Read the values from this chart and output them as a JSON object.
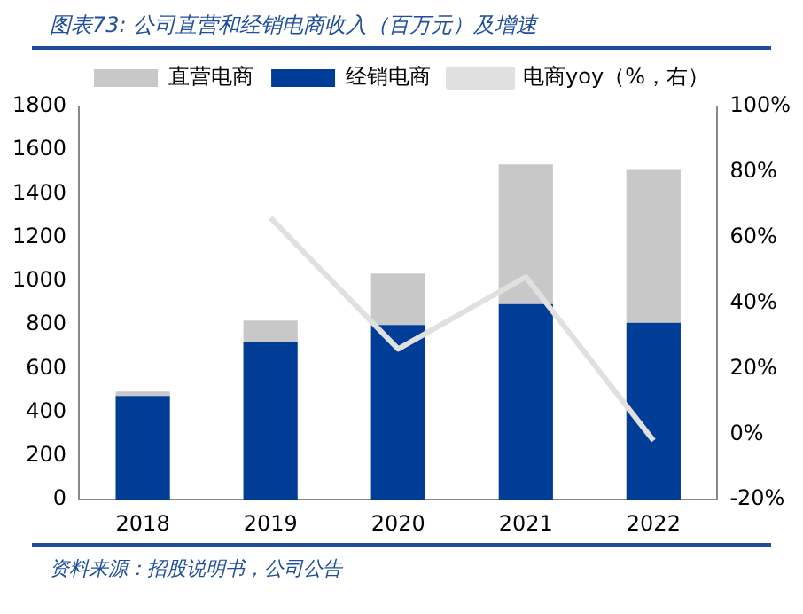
{
  "chart_data": {
    "type": "bar",
    "title": "图表73: 公司直营和经销电商收入（百万元）及增速",
    "annotations": [
      "资料来源：招股说明书，公司公告"
    ],
    "categories": [
      "2018",
      "2019",
      "2020",
      "2021",
      "2022"
    ],
    "stacked": true,
    "legend": "top",
    "grid": false,
    "series": [
      {
        "name": "经销电商",
        "color": "#003d97",
        "values": [
          475,
          720,
          800,
          895,
          810
        ]
      },
      {
        "name": "直营电商",
        "color": "#c8c8c8",
        "values": [
          20,
          100,
          235,
          640,
          700
        ]
      },
      {
        "name": "电商yoy（%，右）",
        "type": "line",
        "axis": "y2",
        "color": "#e0e0e0",
        "marker": "none",
        "values": [
          null,
          66,
          26,
          48,
          -2
        ]
      }
    ],
    "ylim": [
      0,
      1800
    ],
    "yticks": [
      0,
      200,
      400,
      600,
      800,
      1000,
      1200,
      1400,
      1600,
      1800
    ],
    "y2lim": [
      -20,
      100
    ],
    "y2ticks": [
      {
        "value": -20,
        "label": "-20%"
      },
      {
        "value": 0,
        "label": "0%"
      },
      {
        "value": 20,
        "label": "20%"
      },
      {
        "value": 40,
        "label": "40%"
      },
      {
        "value": 60,
        "label": "60%"
      },
      {
        "value": 80,
        "label": "80%"
      },
      {
        "value": 100,
        "label": "100%"
      }
    ]
  }
}
